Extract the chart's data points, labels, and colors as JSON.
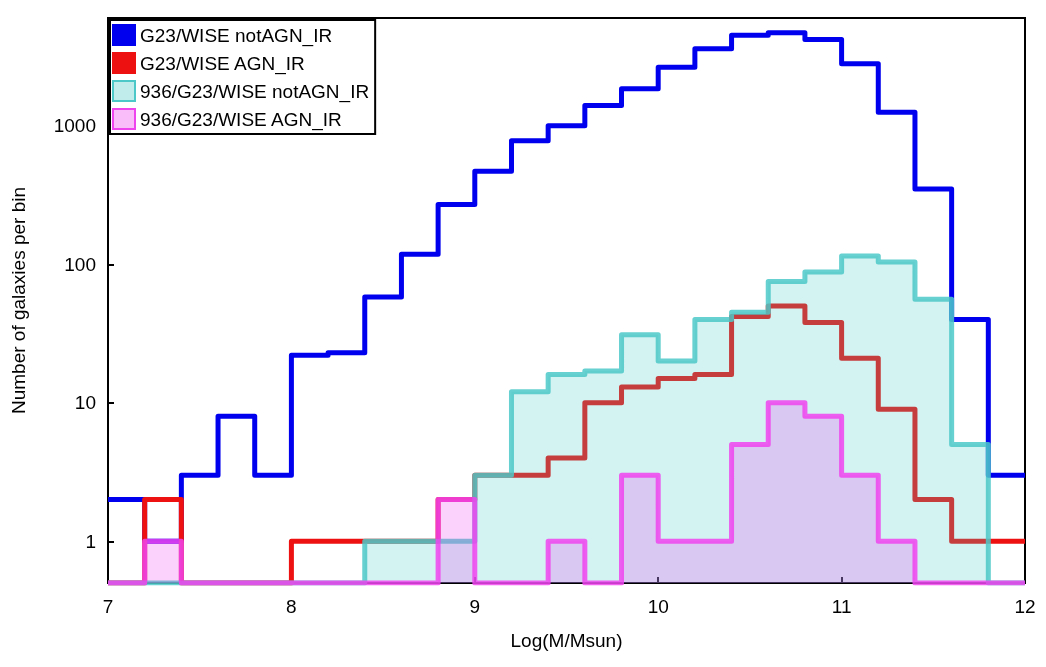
{
  "chart_data": {
    "type": "histogram",
    "xlabel": "Log(M/Msun)",
    "ylabel": "Number of galaxies per bin",
    "bins": [
      7.0,
      7.2,
      7.4,
      7.6,
      7.8,
      8.0,
      8.2,
      8.4,
      8.6,
      8.8,
      9.0,
      9.2,
      9.4,
      9.6,
      9.8,
      10.0,
      10.2,
      10.4,
      10.6,
      10.8,
      11.0,
      11.2,
      11.4,
      11.6,
      11.8,
      12.0
    ],
    "series": [
      {
        "name": "G23/WISE notAGN_IR",
        "color": "#0000ee",
        "values": [
          2,
          1,
          3,
          8,
          3,
          22,
          23,
          58,
          118,
          270,
          470,
          780,
          1000,
          1400,
          1850,
          2650,
          3600,
          4500,
          4700,
          4200,
          2800,
          1250,
          350,
          40,
          3
        ]
      },
      {
        "name": "G23/WISE AGN_IR",
        "color": "#ee1111",
        "values": [
          null,
          2,
          null,
          null,
          null,
          1,
          1,
          1,
          1,
          2,
          3,
          3,
          4,
          10,
          13,
          15,
          16,
          42,
          50,
          38,
          21,
          9,
          2,
          1,
          1
        ]
      },
      {
        "name": "936/G23/WISE notAGN_IR",
        "color": "#4cc8c8",
        "values": [
          null,
          null,
          null,
          null,
          null,
          null,
          null,
          1,
          1,
          1,
          3,
          12,
          16,
          17,
          31,
          20,
          40,
          45,
          75,
          88,
          115,
          104,
          56,
          5,
          null
        ]
      },
      {
        "name": "936/G23/WISE AGN_IR",
        "color": "#ee44ee",
        "values": [
          null,
          1,
          null,
          null,
          null,
          null,
          null,
          null,
          null,
          2,
          null,
          null,
          1,
          null,
          3,
          1,
          1,
          5,
          10,
          8,
          3,
          1,
          null,
          null,
          null
        ]
      }
    ],
    "xlim": [
      7,
      12
    ],
    "xticks": [
      7,
      8,
      9,
      10,
      11,
      12
    ],
    "ylim": [
      0.5,
      6000
    ],
    "yticks": [
      1,
      10,
      100,
      1000
    ],
    "log": "y",
    "grid": false,
    "legend": "top left"
  }
}
